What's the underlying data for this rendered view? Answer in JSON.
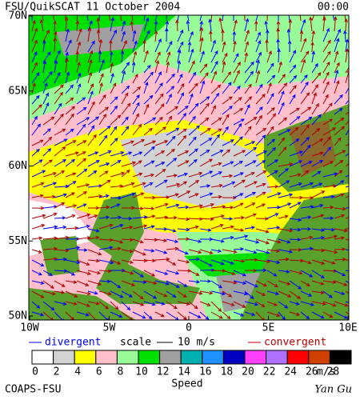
{
  "header": {
    "title": "FSU/QuikSCAT  11 October 2004",
    "time": "00:00"
  },
  "axes": {
    "latitudes": [
      "70N",
      "65N",
      "60N",
      "55N",
      "50N"
    ],
    "longitudes": [
      "10W",
      "5W",
      "0",
      "5E",
      "10E"
    ]
  },
  "legend": {
    "divergent": "divergent",
    "scale": "scale",
    "scale_value": "10 m/s",
    "convergent": "convergent"
  },
  "colorbar": {
    "ticks": [
      0,
      2,
      4,
      6,
      8,
      10,
      12,
      14,
      16,
      18,
      20,
      22,
      24,
      26,
      28
    ],
    "unit": "m/s",
    "label": "Speed",
    "colors": [
      "#ffffff",
      "#d3d3d3",
      "#ffff00",
      "#ffc0cb",
      "#98fb98",
      "#00e000",
      "#a0a0a0",
      "#00b0b0",
      "#1e90ff",
      "#0000c0",
      "#ff40ff",
      "#b070ff",
      "#ff0000",
      "#d04000",
      "#000000"
    ]
  },
  "footer": {
    "left": "COAPS-FSU",
    "right": "Yan Gu"
  }
}
